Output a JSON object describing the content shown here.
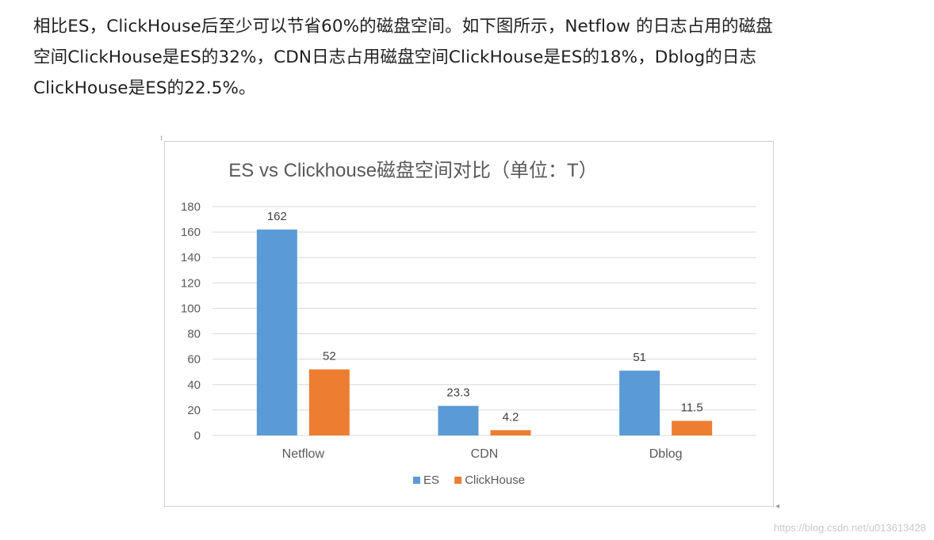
{
  "intro": {
    "line1": "相比ES，ClickHouse后至少可以节省60%的磁盘空间。如下图所示，Netflow 的日志占用的磁盘",
    "line2": "空间ClickHouse是ES的32%，CDN日志占用磁盘空间ClickHouse是ES的18%，Dblog的日志",
    "line3": "ClickHouse是ES的22.5%。"
  },
  "colors": {
    "es": "#5b9bd5",
    "clickhouse": "#ed7d31",
    "grid": "#d9d9d9"
  },
  "chart_data": {
    "type": "bar",
    "title": "ES vs Clickhouse磁盘空间对比（单位：T）",
    "xlabel": "",
    "ylabel": "",
    "categories": [
      "Netflow",
      "CDN",
      "Dblog"
    ],
    "series": [
      {
        "name": "ES",
        "values": [
          162,
          23.3,
          51
        ],
        "labels": [
          "162",
          "23.3",
          "51"
        ]
      },
      {
        "name": "ClickHouse",
        "values": [
          52,
          4.2,
          11.5
        ],
        "labels": [
          "52",
          "4.2",
          "11.5"
        ]
      }
    ],
    "ylim": [
      0,
      180
    ],
    "yticks": [
      "0",
      "20",
      "40",
      "60",
      "80",
      "100",
      "120",
      "140",
      "160",
      "180"
    ],
    "grid": true,
    "legend": "bottom"
  },
  "watermark": "https://blog.csdn.net/u013613428"
}
